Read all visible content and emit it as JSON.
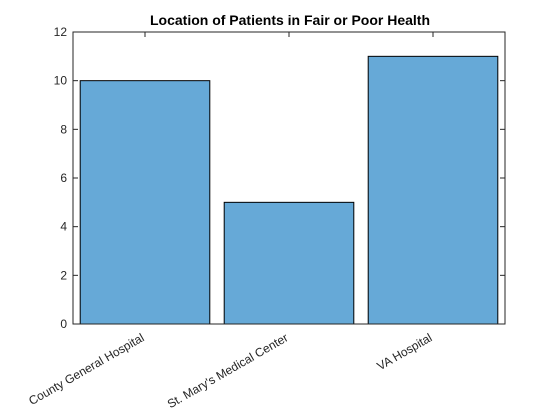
{
  "chart_data": {
    "type": "bar",
    "title": "Location of Patients in Fair or Poor Health",
    "xlabel": "",
    "ylabel": "",
    "categories": [
      "County General Hospital",
      "St. Mary's Medical Center",
      "VA Hospital"
    ],
    "values": [
      10,
      5,
      11
    ],
    "ylim": [
      0,
      12
    ],
    "yticks": [
      0,
      2,
      4,
      6,
      8,
      10,
      12
    ],
    "grid": false,
    "legend": "none",
    "colors": {
      "bar_fill": "#66a9d7",
      "bar_edge": "#000000",
      "axis": "#262626"
    }
  }
}
